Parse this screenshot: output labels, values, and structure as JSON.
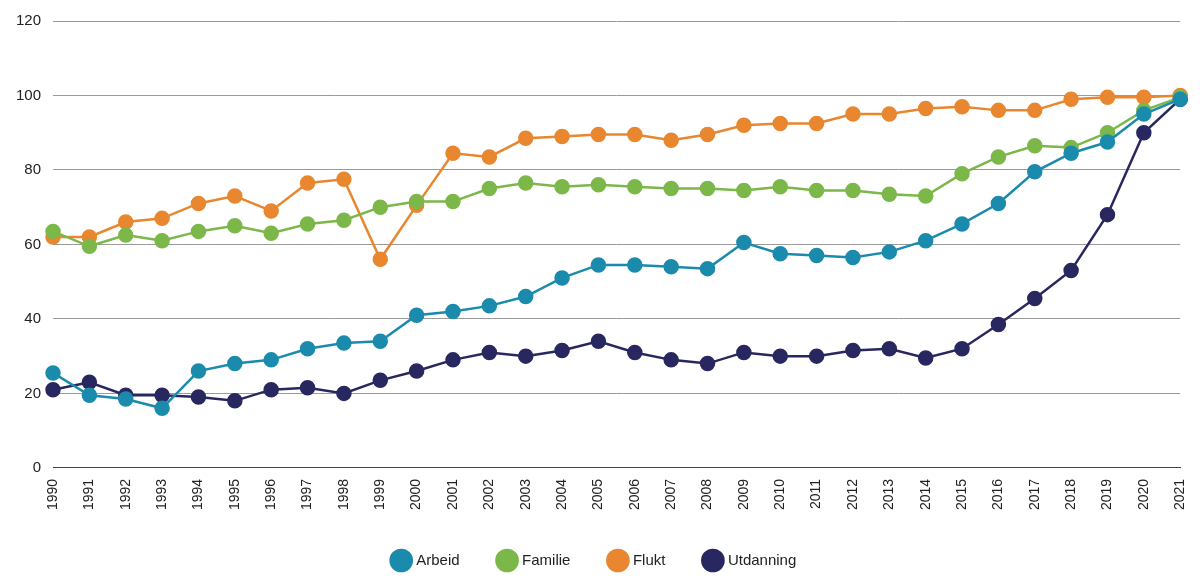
{
  "chart_data": {
    "type": "line",
    "categories": [
      "1990",
      "1991",
      "1992",
      "1993",
      "1994",
      "1995",
      "1996",
      "1997",
      "1998",
      "1999",
      "2000",
      "2001",
      "2002",
      "2003",
      "2004",
      "2005",
      "2006",
      "2007",
      "2008",
      "2009",
      "2010",
      "2011",
      "2012",
      "2013",
      "2014",
      "2015",
      "2016",
      "2017",
      "2018",
      "2019",
      "2020",
      "2021"
    ],
    "series": [
      {
        "name": "Arbeid",
        "color": "#1b8bad",
        "marker": "circle",
        "values": [
          25.5,
          19.5,
          18.5,
          16,
          26,
          28,
          29,
          32,
          33.5,
          34,
          41,
          42,
          43.5,
          46,
          51,
          54.5,
          54.5,
          54,
          53.5,
          60.5,
          57.5,
          57,
          56.5,
          58,
          61,
          65.5,
          71,
          79.5,
          84.5,
          87.5,
          95,
          99
        ]
      },
      {
        "name": "Familie",
        "color": "#7cb749",
        "marker": "circle",
        "values": [
          63.5,
          59.5,
          62.5,
          61,
          63.5,
          65,
          63,
          65.5,
          66.5,
          70,
          71.5,
          71.5,
          75,
          76.5,
          75.5,
          76,
          75.5,
          75,
          75,
          74.5,
          75.5,
          74.5,
          74.5,
          73.5,
          73,
          79,
          83.5,
          86.5,
          86,
          90,
          96,
          99.5
        ]
      },
      {
        "name": "Flukt",
        "color": "#e8872f",
        "marker": "circle",
        "values": [
          62,
          62,
          66,
          67,
          71,
          73,
          69,
          76.5,
          77.5,
          56,
          70.5,
          84.5,
          83.5,
          88.5,
          89,
          89.5,
          89.5,
          88,
          89.5,
          92,
          92.5,
          92.5,
          95,
          95,
          96.5,
          97,
          96,
          96,
          99,
          99.5,
          99.5,
          100
        ]
      },
      {
        "name": "Utdanning",
        "color": "#29275f",
        "marker": "circle",
        "values": [
          21,
          23,
          19.5,
          19.5,
          19,
          18,
          21,
          21.5,
          20,
          23.5,
          26,
          29,
          31,
          30,
          31.5,
          34,
          31,
          29,
          28,
          31,
          30,
          30,
          31.5,
          32,
          29.5,
          32,
          38.5,
          45.5,
          53,
          68,
          90,
          99
        ]
      }
    ],
    "ylim": [
      0,
      120
    ],
    "yticks": [
      0,
      20,
      40,
      60,
      80,
      100,
      120
    ],
    "grid": true,
    "legend": "bottom"
  }
}
